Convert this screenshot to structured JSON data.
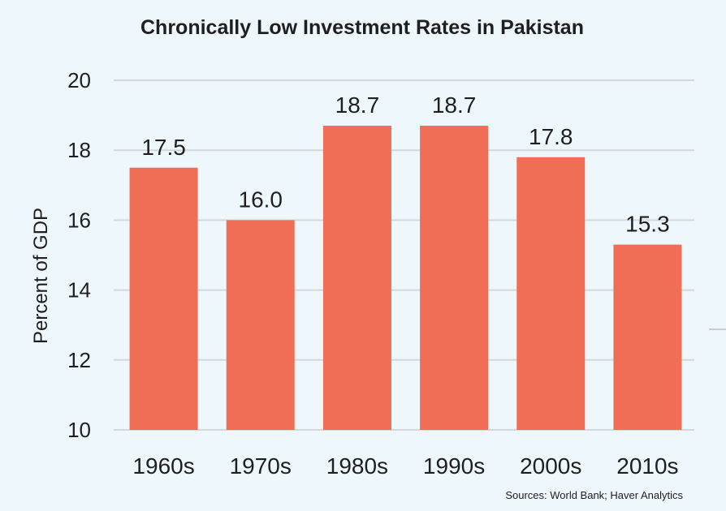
{
  "chart_data": {
    "type": "bar",
    "title": "Chronically Low Investment Rates in Pakistan",
    "categories": [
      "1960s",
      "1970s",
      "1980s",
      "1990s",
      "2000s",
      "2010s"
    ],
    "values": [
      17.5,
      16.0,
      18.7,
      18.7,
      17.8,
      15.3
    ],
    "data_labels": [
      "17.5",
      "16.0",
      "18.7",
      "18.7",
      "17.8",
      "15.3"
    ],
    "xlabel": "",
    "ylabel": "Percent of GDP",
    "ylim": [
      10,
      20
    ],
    "yticks": [
      10,
      12,
      14,
      16,
      18,
      20
    ],
    "grid": true,
    "source": "Sources: World Bank; Haver Analytics",
    "colors": {
      "bar": "#f06e55",
      "grid": "#d4d8da",
      "text": "#1f1f1f"
    }
  }
}
